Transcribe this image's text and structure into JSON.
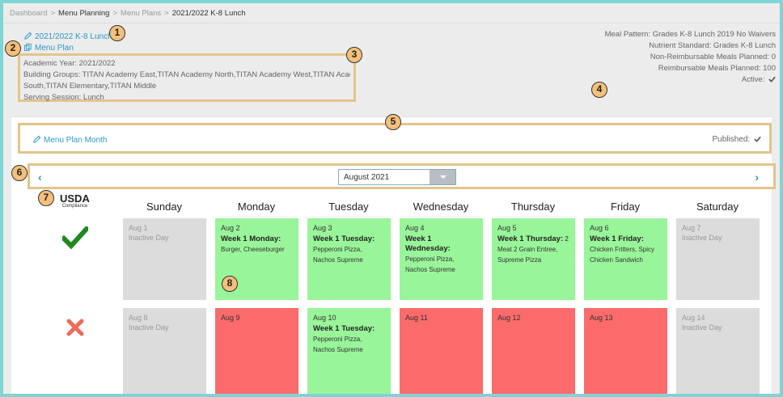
{
  "breadcrumb": {
    "items": [
      "Dashboard",
      "Menu Planning",
      "Menu Plans",
      "2021/2022 K-8 Lunch"
    ],
    "separator": ">"
  },
  "plan": {
    "title": "2021/2022 K-8 Lunch",
    "type": "Menu Plan",
    "academic_year": "Academic Year: 2021/2022",
    "building_groups_line1": "Building Groups: TITAN Academy East,TITAN Academy North,TITAN Academy West,TITAN Academy",
    "building_groups_line2": "South,TITAN Elementary,TITAN Middle",
    "serving_session": "Serving Session: Lunch"
  },
  "meta": {
    "meal_pattern": "Meal Pattern: Grades K-8 Lunch 2019 No Waivers",
    "nutrient_standard": "Nutrient Standard: Grades K-8 Lunch",
    "non_reimbursable": "Non-Reimbursable Meals Planned: 0",
    "reimbursable": "Reimbursable Meals Planned: 100",
    "active": "Active:"
  },
  "month_plan": {
    "link": "Menu Plan Month",
    "published": "Published:"
  },
  "navigation": {
    "prev": "‹",
    "next": "›",
    "selected_month": "August 2021"
  },
  "usda": {
    "title": "USDA",
    "subtitle": "Compliance"
  },
  "days": [
    "Sunday",
    "Monday",
    "Tuesday",
    "Wednesday",
    "Thursday",
    "Friday",
    "Saturday"
  ],
  "weeks": [
    {
      "compliant": true,
      "cells": [
        {
          "date": "Aug 1",
          "status": "inactive",
          "note": "Inactive Day"
        },
        {
          "date": "Aug 2",
          "status": "green",
          "week": "Week 1 Monday:",
          "items": "Burger, Cheeseburger"
        },
        {
          "date": "Aug 3",
          "status": "green",
          "week": "Week 1 Tuesday:",
          "items": "Pepperoni Pizza, Nachos Supreme"
        },
        {
          "date": "Aug 4",
          "status": "green",
          "week": "Week 1 Wednesday:",
          "items": "Pepperoni Pizza, Nachos Supreme"
        },
        {
          "date": "Aug 5",
          "status": "green",
          "week": "Week 1 Thursday:",
          "week_suffix": " 2",
          "items": "Meat 2 Grain Entree, Supreme Pizza"
        },
        {
          "date": "Aug 6",
          "status": "green",
          "week": "Week 1 Friday:",
          "items": "Chicken Fritters, Spicy Chicken Sandwich"
        },
        {
          "date": "Aug 7",
          "status": "inactive",
          "note": "Inactive Day"
        }
      ]
    },
    {
      "compliant": false,
      "cells": [
        {
          "date": "Aug 8",
          "status": "inactive",
          "note": "Inactive Day"
        },
        {
          "date": "Aug 9",
          "status": "red"
        },
        {
          "date": "Aug 10",
          "status": "green",
          "week": "Week 1 Tuesday:",
          "items": "Pepperoni Pizza, Nachos Supreme"
        },
        {
          "date": "Aug 11",
          "status": "red"
        },
        {
          "date": "Aug 12",
          "status": "red"
        },
        {
          "date": "Aug 13",
          "status": "red"
        },
        {
          "date": "Aug 14",
          "status": "inactive",
          "note": "Inactive Day"
        }
      ]
    }
  ],
  "markers": [
    "1",
    "2",
    "3",
    "4",
    "5",
    "6",
    "7",
    "8"
  ],
  "colors": {
    "accent": "#2a9bc7",
    "active_cell": "#99f599",
    "missing_cell": "#fb6b6b",
    "inactive_cell": "#dcdcdc",
    "check": "#1e8a1e",
    "cross": "#f06a5a",
    "callout": "#f5c07a",
    "highlight_border": "#e3c48c"
  }
}
